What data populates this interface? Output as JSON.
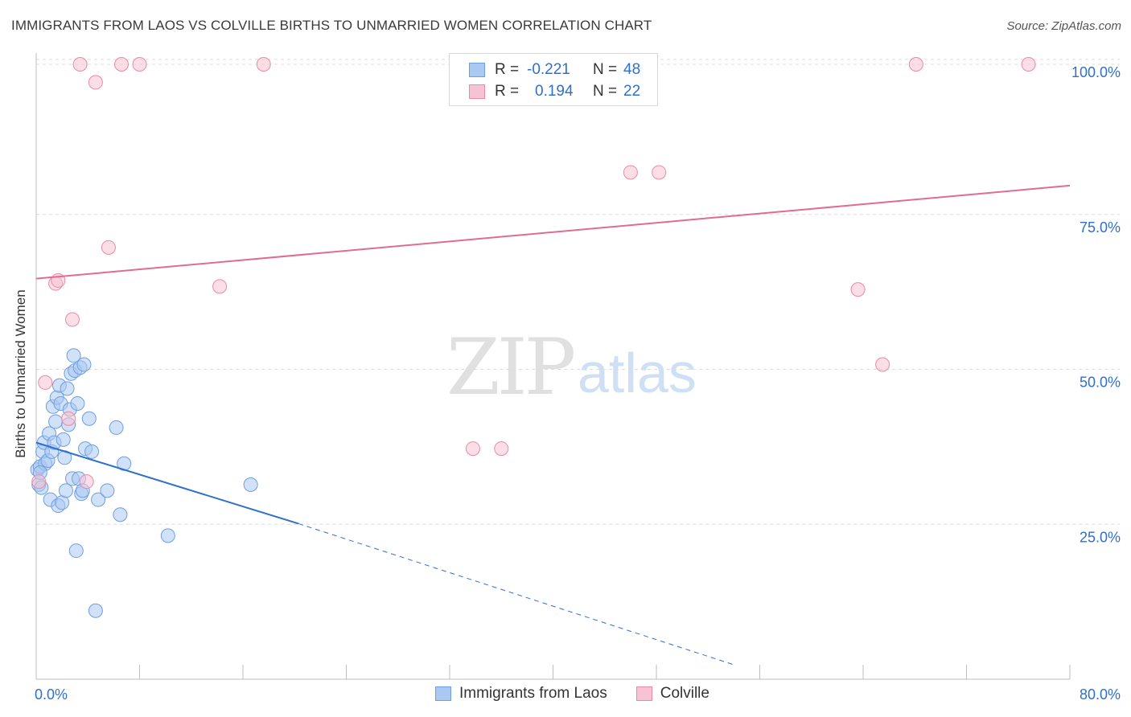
{
  "title": "IMMIGRANTS FROM LAOS VS COLVILLE BIRTHS TO UNMARRIED WOMEN CORRELATION CHART",
  "source": "Source: ZipAtlas.com",
  "watermark": {
    "zip": "ZIP",
    "atlas": "atlas"
  },
  "legend": {
    "rows": [
      {
        "r_label": "R =",
        "r_value": "-0.221",
        "n_label": "N =",
        "n_value": "48",
        "color": "#a9c8f2",
        "border": "#6e9fe0"
      },
      {
        "r_label": "R =",
        "r_value": "0.194",
        "n_label": "N =",
        "n_value": "22",
        "color": "#f7c3d2",
        "border": "#e98aa8"
      }
    ]
  },
  "chart_data": {
    "type": "scatter",
    "title": "IMMIGRANTS FROM LAOS VS COLVILLE BIRTHS TO UNMARRIED WOMEN CORRELATION CHART",
    "xlabel": "",
    "ylabel": "Births to Unmarried Women",
    "xlim": [
      0,
      80
    ],
    "ylim": [
      0,
      102
    ],
    "x_tick_labels": [
      "0.0%",
      "80.0%"
    ],
    "y_ticks": [
      25,
      50,
      75,
      100
    ],
    "y_tick_labels": [
      "25.0%",
      "50.0%",
      "75.0%",
      "100.0%"
    ],
    "series": [
      {
        "name": "Immigrants from Laos",
        "color": "#6e9fe0",
        "fill": "#a9c8f2",
        "points": [
          [
            0.1,
            32.5
          ],
          [
            0.2,
            30.0
          ],
          [
            0.3,
            33.0
          ],
          [
            0.4,
            29.5
          ],
          [
            0.5,
            35.5
          ],
          [
            0.6,
            37.0
          ],
          [
            0.7,
            33.5
          ],
          [
            0.9,
            34.0
          ],
          [
            1.0,
            38.5
          ],
          [
            1.1,
            27.5
          ],
          [
            1.2,
            35.5
          ],
          [
            1.3,
            43.0
          ],
          [
            1.4,
            37.0
          ],
          [
            1.5,
            40.5
          ],
          [
            1.6,
            44.5
          ],
          [
            1.7,
            26.5
          ],
          [
            1.8,
            46.5
          ],
          [
            1.9,
            43.5
          ],
          [
            2.0,
            27.0
          ],
          [
            2.1,
            37.5
          ],
          [
            2.2,
            34.5
          ],
          [
            2.3,
            29.0
          ],
          [
            2.4,
            46.0
          ],
          [
            2.5,
            40.0
          ],
          [
            2.6,
            42.5
          ],
          [
            2.7,
            48.5
          ],
          [
            2.8,
            31.0
          ],
          [
            2.9,
            51.5
          ],
          [
            3.0,
            49.0
          ],
          [
            3.1,
            19.0
          ],
          [
            3.2,
            43.5
          ],
          [
            3.3,
            31.0
          ],
          [
            3.4,
            49.5
          ],
          [
            3.5,
            28.5
          ],
          [
            3.6,
            29.0
          ],
          [
            3.7,
            50.0
          ],
          [
            3.8,
            36.0
          ],
          [
            4.1,
            41.0
          ],
          [
            4.3,
            35.5
          ],
          [
            4.6,
            9.0
          ],
          [
            4.8,
            27.5
          ],
          [
            5.5,
            29.0
          ],
          [
            6.2,
            39.5
          ],
          [
            6.5,
            25.0
          ],
          [
            6.8,
            33.5
          ],
          [
            10.2,
            21.5
          ],
          [
            16.6,
            30.0
          ],
          [
            0.3,
            32.0
          ]
        ]
      },
      {
        "name": "Colville",
        "color": "#e98aa8",
        "fill": "#f7c3d2",
        "points": [
          [
            0.2,
            30.5
          ],
          [
            0.7,
            47.0
          ],
          [
            1.5,
            63.5
          ],
          [
            1.7,
            64.0
          ],
          [
            2.5,
            41.0
          ],
          [
            2.8,
            57.5
          ],
          [
            3.4,
            100.0
          ],
          [
            3.9,
            30.5
          ],
          [
            4.6,
            97.0
          ],
          [
            5.6,
            69.5
          ],
          [
            6.6,
            100.0
          ],
          [
            8.0,
            100.0
          ],
          [
            14.2,
            63.0
          ],
          [
            17.6,
            100.0
          ],
          [
            33.8,
            36.0
          ],
          [
            36.0,
            36.0
          ],
          [
            46.0,
            82.0
          ],
          [
            48.2,
            82.0
          ],
          [
            63.6,
            62.5
          ],
          [
            65.5,
            50.0
          ],
          [
            68.1,
            100.0
          ],
          [
            76.8,
            100.0
          ]
        ]
      }
    ],
    "trendlines": [
      {
        "series": "Immigrants from Laos",
        "x": [
          0,
          20.3
        ],
        "y": [
          37.0,
          23.5
        ],
        "dashed_extension": {
          "x": [
            20.3,
            54
          ],
          "y": [
            23.5,
            0
          ]
        },
        "color": "#2f6fce"
      },
      {
        "series": "Colville",
        "x": [
          0,
          80
        ],
        "y": [
          64.3,
          79.8
        ],
        "color": "#e06c94"
      }
    ]
  },
  "bottom_legend": [
    {
      "label": "Immigrants from Laos",
      "color": "#a9c8f2",
      "border": "#6e9fe0"
    },
    {
      "label": "Colville",
      "color": "#f7c3d2",
      "border": "#e98aa8"
    }
  ]
}
